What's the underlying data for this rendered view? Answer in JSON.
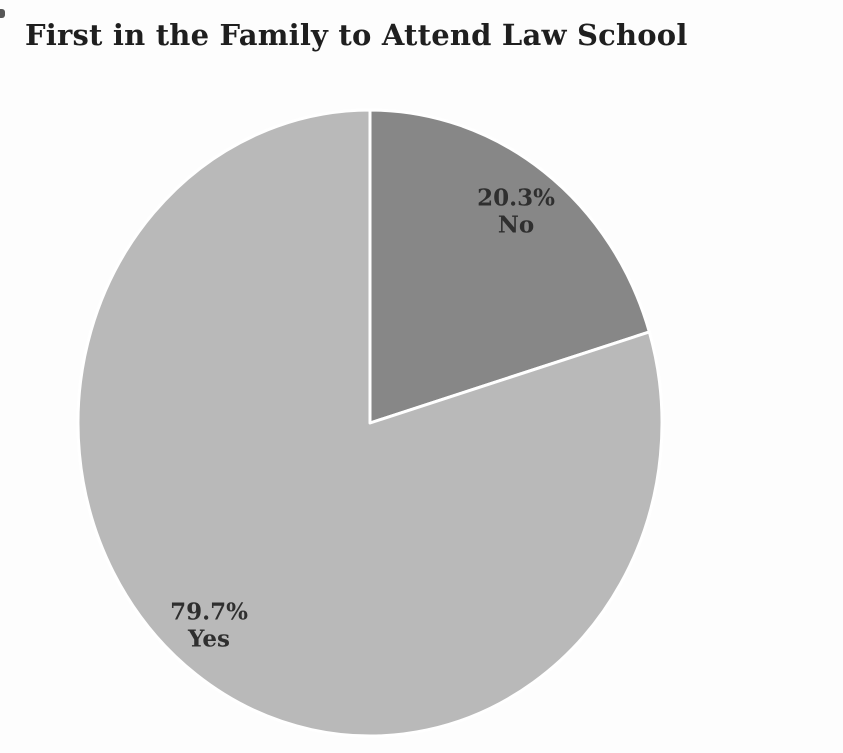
{
  "chart_data": {
    "type": "pie",
    "title": "First in the Family to Attend Law School",
    "title_color": "#1f1f1f",
    "label_color": "#2f2f2f",
    "divider_color": "#ffffff",
    "legend": "none",
    "start_angle": "12-o'clock",
    "direction": "clockwise",
    "slices": [
      {
        "label": "No",
        "value": 20.3,
        "pct_label": "20.3%",
        "color": "#878787"
      },
      {
        "label": "Yes",
        "value": 79.7,
        "pct_label": "79.7%",
        "color": "#b9b9b9"
      }
    ]
  }
}
